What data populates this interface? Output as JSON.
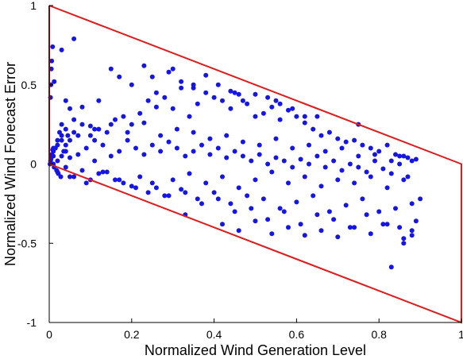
{
  "chart_data": {
    "type": "scatter",
    "title": "",
    "xlabel": "Normalized Wind Generation Level",
    "ylabel": "Normalized Wind Forecast Error",
    "xlim": [
      0,
      1
    ],
    "ylim": [
      -1,
      1
    ],
    "xticks": [
      0,
      0.2,
      0.4,
      0.6,
      0.8,
      1
    ],
    "xtick_labels": [
      "0",
      "0.2",
      "0.4",
      "0.6",
      "0.8",
      "1"
    ],
    "yticks": [
      -1,
      -0.5,
      0,
      0.5,
      1
    ],
    "ytick_labels": [
      "-1",
      "-0.5",
      "0",
      "0.5",
      "1"
    ],
    "grid": false,
    "colors": {
      "points": "#1515e6",
      "boundary": "#e01b1b",
      "axes": "#000000"
    },
    "boundary_polygon": {
      "x": [
        0,
        1,
        1,
        0,
        0
      ],
      "y": [
        1,
        0,
        -1,
        0,
        1
      ]
    },
    "series": [
      {
        "x": [
          0.003,
          0.003,
          0.004,
          0.005,
          0.006,
          0.008,
          0.01,
          0.012,
          0.06,
          0.03,
          0.04,
          0.05,
          0.06,
          0.08,
          0.1,
          0.11,
          0.12,
          0.005,
          0.01,
          0.02,
          0.03,
          0.04,
          0.05,
          0.06,
          0.08,
          0.1,
          0.12,
          0.14,
          0.16,
          0.18,
          0.2,
          0.22,
          0.24,
          0.26,
          0.28,
          0.3,
          0.32,
          0.34,
          0.36,
          0.38,
          0.4,
          0.42,
          0.44,
          0.46,
          0.48,
          0.5,
          0.52,
          0.54,
          0.56,
          0.58,
          0.6,
          0.62,
          0.64,
          0.66,
          0.68,
          0.7,
          0.72,
          0.74,
          0.76,
          0.78,
          0.8,
          0.82,
          0.84,
          0.86,
          0.88,
          0.89,
          0.01,
          0.02,
          0.03,
          0.04,
          0.05,
          0.07,
          0.09,
          0.11,
          0.13,
          0.15,
          0.17,
          0.19,
          0.21,
          0.23,
          0.25,
          0.27,
          0.29,
          0.31,
          0.33,
          0.35,
          0.37,
          0.39,
          0.41,
          0.43,
          0.45,
          0.47,
          0.49,
          0.51,
          0.53,
          0.55,
          0.57,
          0.59,
          0.61,
          0.63,
          0.65,
          0.67,
          0.69,
          0.71,
          0.73,
          0.75,
          0.77,
          0.79,
          0.81,
          0.83,
          0.85,
          0.87,
          0.02,
          0.06,
          0.1,
          0.14,
          0.18,
          0.22,
          0.26,
          0.3,
          0.34,
          0.38,
          0.42,
          0.46,
          0.5,
          0.54,
          0.58,
          0.62,
          0.66,
          0.7,
          0.74,
          0.78,
          0.82,
          0.86,
          0.04,
          0.08,
          0.12,
          0.16,
          0.2,
          0.24,
          0.28,
          0.32,
          0.36,
          0.4,
          0.44,
          0.48,
          0.52,
          0.56,
          0.6,
          0.64,
          0.68,
          0.72,
          0.76,
          0.8,
          0.84,
          0.88,
          0.15,
          0.17,
          0.2,
          0.23,
          0.26,
          0.29,
          0.32,
          0.35,
          0.38,
          0.41,
          0.44,
          0.47,
          0.5,
          0.53,
          0.56,
          0.59,
          0.62,
          0.03,
          0.07,
          0.11,
          0.15,
          0.19,
          0.23,
          0.27,
          0.31,
          0.35,
          0.39,
          0.43,
          0.47,
          0.51,
          0.55,
          0.59,
          0.63,
          0.67,
          0.71,
          0.75,
          0.79,
          0.83,
          0.87,
          0.05,
          0.09,
          0.13,
          0.17,
          0.21,
          0.25,
          0.29,
          0.33,
          0.37,
          0.41,
          0.45,
          0.49,
          0.53,
          0.57,
          0.61,
          0.65,
          0.69,
          0.73,
          0.77,
          0.81,
          0.85,
          0.89,
          0.33,
          0.42,
          0.46,
          0.5,
          0.54,
          0.58,
          0.62,
          0.66,
          0.7,
          0.74,
          0.78,
          0.82,
          0.86,
          0.88,
          0.01,
          0.015,
          0.02,
          0.025,
          0.03,
          0.035,
          0.04,
          0.045,
          0.002,
          0.004,
          0.006,
          0.008,
          0.012,
          0.018,
          0.022,
          0.028,
          0.25,
          0.3,
          0.35,
          0.45,
          0.55,
          0.65,
          0.75,
          0.85,
          0.9,
          0.88,
          0.86,
          0.83
        ],
        "y": [
          0.02,
          0.42,
          0.5,
          0.6,
          0.65,
          0.74,
          0.1,
          0.52,
          0.79,
          0.72,
          0.4,
          0.35,
          0.28,
          0.36,
          0.24,
          0.15,
          0.4,
          0.05,
          0.08,
          0.12,
          0.18,
          0.22,
          0.15,
          0.2,
          0.25,
          0.18,
          0.22,
          0.2,
          0.28,
          0.3,
          0.25,
          0.32,
          0.4,
          0.36,
          0.42,
          0.35,
          0.48,
          0.3,
          0.38,
          0.45,
          0.42,
          0.4,
          0.35,
          0.44,
          0.38,
          0.3,
          0.32,
          0.36,
          0.28,
          0.34,
          0.3,
          0.26,
          0.22,
          0.18,
          0.2,
          0.16,
          0.14,
          0.15,
          0.12,
          0.1,
          0.08,
          0.12,
          0.06,
          0.05,
          0.02,
          0.03,
          0.0,
          0.02,
          0.05,
          0.08,
          0.04,
          0.06,
          0.1,
          0.02,
          0.12,
          0.05,
          0.08,
          0.15,
          0.1,
          0.06,
          0.12,
          0.08,
          0.14,
          0.1,
          0.05,
          0.08,
          0.12,
          0.06,
          0.1,
          0.04,
          0.08,
          0.05,
          0.02,
          0.06,
          0.0,
          0.04,
          0.02,
          -0.02,
          0.03,
          0.0,
          0.05,
          -0.02,
          0.02,
          -0.04,
          0.0,
          -0.02,
          -0.05,
          0.02,
          -0.03,
          -0.06,
          0.0,
          -0.08,
          -0.05,
          -0.08,
          -0.1,
          -0.05,
          -0.12,
          -0.08,
          -0.15,
          -0.1,
          -0.06,
          -0.12,
          -0.08,
          -0.15,
          -0.1,
          -0.05,
          -0.12,
          -0.08,
          -0.14,
          -0.1,
          -0.12,
          -0.08,
          -0.15,
          -0.1,
          -0.02,
          -0.04,
          -0.06,
          -0.1,
          -0.14,
          -0.18,
          -0.2,
          -0.16,
          -0.22,
          -0.18,
          -0.25,
          -0.2,
          -0.22,
          -0.28,
          -0.24,
          -0.2,
          -0.3,
          -0.26,
          -0.22,
          -0.3,
          -0.28,
          -0.25,
          0.6,
          0.55,
          0.5,
          0.62,
          0.45,
          0.58,
          0.52,
          0.48,
          0.56,
          0.5,
          0.46,
          0.4,
          0.44,
          0.42,
          0.38,
          0.35,
          0.3,
          0.15,
          0.18,
          0.22,
          0.25,
          0.2,
          0.26,
          0.18,
          0.22,
          0.2,
          0.16,
          0.18,
          0.14,
          0.12,
          0.16,
          0.1,
          0.12,
          0.08,
          0.1,
          0.05,
          0.06,
          0.02,
          0.04,
          -0.08,
          -0.12,
          -0.05,
          -0.1,
          -0.15,
          -0.12,
          -0.2,
          -0.18,
          -0.25,
          -0.22,
          -0.3,
          -0.28,
          -0.35,
          -0.3,
          -0.38,
          -0.32,
          -0.35,
          -0.4,
          -0.32,
          -0.38,
          -0.4,
          -0.36,
          -0.32,
          -0.38,
          -0.42,
          -0.36,
          -0.44,
          -0.4,
          -0.45,
          -0.42,
          -0.46,
          -0.4,
          -0.44,
          -0.38,
          -0.47,
          -0.42,
          0.05,
          0.1,
          0.15,
          0.2,
          0.25,
          0.08,
          0.12,
          0.18,
          0.0,
          0.03,
          0.06,
          0.09,
          -0.02,
          -0.04,
          -0.06,
          -0.08,
          0.55,
          0.6,
          0.5,
          0.45,
          0.4,
          0.3,
          0.25,
          0.05,
          -0.22,
          -0.45,
          -0.5,
          -0.65
        ]
      }
    ]
  }
}
